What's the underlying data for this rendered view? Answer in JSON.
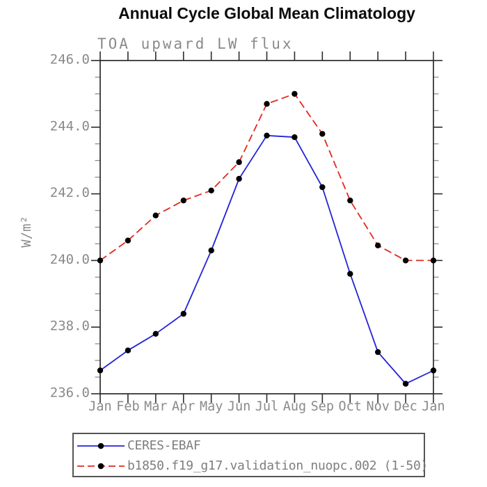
{
  "title": "Annual Cycle Global Mean Climatology",
  "subtitle": "TOA upward LW flux",
  "ylabel": "W/m²",
  "chart_data": {
    "type": "line",
    "categories": [
      "Jan",
      "Feb",
      "Mar",
      "Apr",
      "May",
      "Jun",
      "Jul",
      "Aug",
      "Sep",
      "Oct",
      "Nov",
      "Dec",
      "Jan"
    ],
    "series": [
      {
        "name": "CERES-EBAF",
        "color": "#2323d6",
        "line_style": "solid",
        "marker": "filled-black-circle",
        "values": [
          236.7,
          237.3,
          237.8,
          238.4,
          240.3,
          242.45,
          243.75,
          243.7,
          242.2,
          239.6,
          237.25,
          236.3,
          236.7
        ]
      },
      {
        "name": "b1850.f19_g17.validation_nuopc.002 (1-50)",
        "color": "#e32820",
        "line_style": "dashed",
        "marker": "filled-black-circle",
        "values": [
          240.0,
          240.6,
          241.35,
          241.8,
          242.1,
          242.95,
          244.7,
          245.0,
          243.8,
          241.8,
          240.45,
          240.0,
          240.0
        ]
      }
    ],
    "title": "Annual Cycle Global Mean Climatology",
    "subtitle": "TOA upward LW flux",
    "xlabel": "",
    "ylabel": "W/m²",
    "ylim": [
      236.0,
      246.0
    ],
    "ytick_major": [
      236.0,
      238.0,
      240.0,
      242.0,
      244.0,
      246.0
    ],
    "ytick_minor_step": 0.5,
    "grid": false,
    "legend_position": "bottom",
    "frame_ticks": "all-sides-outward"
  },
  "colors": {
    "title_text": "#0c0c0c",
    "axis_frame": "#2b2b2b",
    "tick_label_text": "#8a8a8a",
    "legend_text": "#7e7e7e",
    "marker": "#000000",
    "series_blue": "#2323d6",
    "series_red": "#e32820"
  }
}
